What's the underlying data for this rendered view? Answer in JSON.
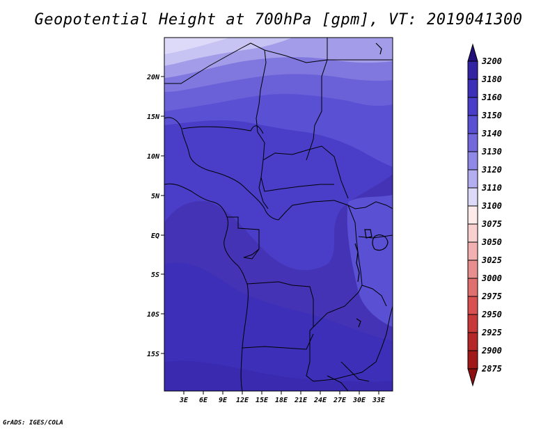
{
  "title": "Geopotential Height at 700hPa [gpm], VT: 2019041300",
  "footer": "GrADS: IGES/COLA",
  "map": {
    "lat_labels": [
      "20N",
      "15N",
      "10N",
      "5N",
      "EQ",
      "5S",
      "10S",
      "15S"
    ],
    "lon_labels": [
      "3E",
      "6E",
      "9E",
      "12E",
      "15E",
      "18E",
      "21E",
      "24E",
      "27E",
      "30E",
      "33E"
    ]
  },
  "colorbar": {
    "levels": [
      {
        "label": "3200",
        "color": "#2a1a8c"
      },
      {
        "label": "3180",
        "color": "#3324a3"
      },
      {
        "label": "3160",
        "color": "#3d2fb8"
      },
      {
        "label": "3150",
        "color": "#4a3ec8"
      },
      {
        "label": "3140",
        "color": "#5a50d4"
      },
      {
        "label": "3130",
        "color": "#7268dc"
      },
      {
        "label": "3120",
        "color": "#8f88e6"
      },
      {
        "label": "3110",
        "color": "#b3aef0"
      },
      {
        "label": "3100",
        "color": "#dcdaf8"
      },
      {
        "label": "3075",
        "color": "#fdeaea"
      },
      {
        "label": "3050",
        "color": "#f8d0d0"
      },
      {
        "label": "3025",
        "color": "#f2b0b0"
      },
      {
        "label": "3000",
        "color": "#e88e8e"
      },
      {
        "label": "2975",
        "color": "#e07070"
      },
      {
        "label": "2950",
        "color": "#d85050"
      },
      {
        "label": "2925",
        "color": "#c83a3a"
      },
      {
        "label": "2900",
        "color": "#b52828"
      },
      {
        "label": "2875",
        "color": "#a01818"
      }
    ],
    "top_color": "#24107a",
    "bottom_color": "#8c1010"
  }
}
